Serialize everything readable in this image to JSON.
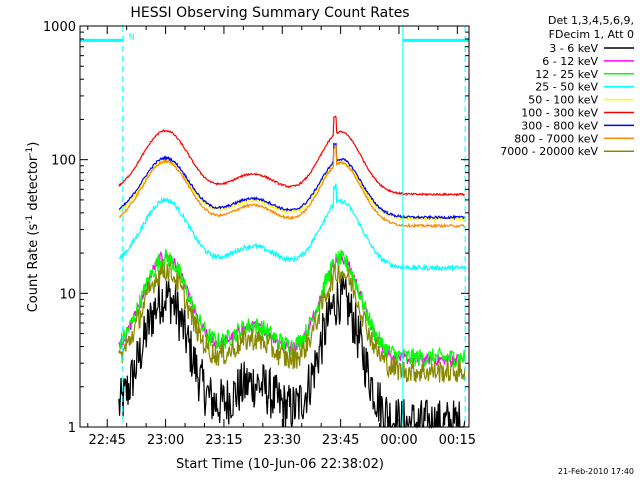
{
  "chart_data": {
    "type": "line",
    "title": "HESSI Observing Summary Count Rates",
    "xlabel": "Start Time (10-Jun-06 22:38:02)",
    "ylabel_main": "Count Rate (s",
    "ylabel_sup1": "-1",
    "ylabel_mid": " detector",
    "ylabel_sup2": "-1",
    "ylabel_end": ")",
    "y_scale": "log",
    "ylim": [
      1,
      1000
    ],
    "xlim_minutes_after_2238": [
      0,
      100
    ],
    "x_ticks": [
      {
        "label": "22:45",
        "minute": 7
      },
      {
        "label": "23:00",
        "minute": 22
      },
      {
        "label": "23:15",
        "minute": 37
      },
      {
        "label": "23:30",
        "minute": 52
      },
      {
        "label": "23:45",
        "minute": 67
      },
      {
        "label": "00:00",
        "minute": 82
      },
      {
        "label": "00:15",
        "minute": 97
      }
    ],
    "y_ticks": [
      {
        "label": "1",
        "value": 1
      },
      {
        "label": "10",
        "value": 10
      },
      {
        "label": "100",
        "value": 100
      },
      {
        "label": "1000",
        "value": 1000
      }
    ],
    "legend_header": [
      "Det 1,3,4,5,6,9,",
      "FDecim 1, Att 0"
    ],
    "series": [
      {
        "name": "3 - 6 keV",
        "color": "#000000",
        "base": 1.05,
        "peak": 9.5,
        "noise": 0.55,
        "floor": 1.0
      },
      {
        "name": "6 - 12 keV",
        "color": "#ff00ff",
        "base": 3.2,
        "peak": 19.0,
        "noise": 0.12
      },
      {
        "name": "12 - 25 keV",
        "color": "#00ff00",
        "base": 3.3,
        "peak": 18.5,
        "noise": 0.2
      },
      {
        "name": "25 - 50 keV",
        "color": "#00ffff",
        "base": 15.5,
        "peak": 50.0,
        "noise": 0.05
      },
      {
        "name": "50 - 100 keV",
        "color": "#ffff00",
        "base": 36.0,
        "peak": 97.0,
        "noise": 0.03
      },
      {
        "name": "100 - 300 keV",
        "color": "#ff0000",
        "base": 55.0,
        "peak": 165.0,
        "noise": 0.02
      },
      {
        "name": "300 - 800 keV",
        "color": "#0000ff",
        "base": 37.0,
        "peak": 103.0,
        "noise": 0.025
      },
      {
        "name": "800 - 7000 keV",
        "color": "#ff8800",
        "base": 32.0,
        "peak": 97.0,
        "noise": 0.025
      },
      {
        "name": "7000 - 20000 keV",
        "color": "#888800",
        "base": 2.6,
        "peak": 15.0,
        "noise": 0.25
      }
    ],
    "orbit_markers": [
      {
        "minute": 0,
        "style": "solid"
      },
      {
        "minute": 11,
        "style": "dashed"
      },
      {
        "minute": 83,
        "style": "solid"
      },
      {
        "minute": 99,
        "style": "dashed"
      }
    ],
    "night_bars": [
      {
        "from": 0,
        "to": 11,
        "value": 780
      },
      {
        "from": 83,
        "to": 100,
        "value": 780
      }
    ],
    "annotation": "N",
    "footer_date": "21-Feb-2010 17:40"
  }
}
